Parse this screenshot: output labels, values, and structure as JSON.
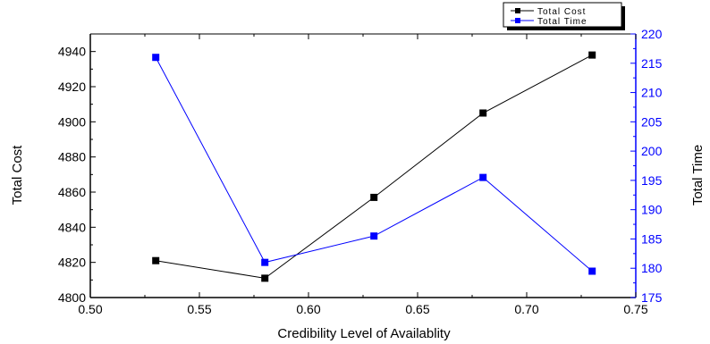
{
  "chart_data": {
    "type": "line",
    "xlabel": "Credibility Level of Availablity",
    "ylabel_left": "Total Cost",
    "ylabel_right": "Total Time",
    "xlim": [
      0.5,
      0.75
    ],
    "x_ticks": [
      "0.50",
      "0.55",
      "0.60",
      "0.65",
      "0.70",
      "0.75"
    ],
    "ylim_left": [
      4800,
      4950
    ],
    "y_ticks_left": [
      "4800",
      "4820",
      "4840",
      "4860",
      "4880",
      "4900",
      "4920",
      "4940"
    ],
    "ylim_right": [
      175,
      220
    ],
    "y_ticks_right": [
      "175",
      "180",
      "185",
      "190",
      "195",
      "200",
      "205",
      "210",
      "215",
      "220"
    ],
    "legend_position": "top-right",
    "grid": false,
    "series": [
      {
        "name": "Total Cost",
        "axis": "left",
        "color": "#000000",
        "x": [
          0.53,
          0.58,
          0.63,
          0.68,
          0.73
        ],
        "y": [
          4821,
          4811,
          4857,
          4905,
          4938
        ]
      },
      {
        "name": "Total Time",
        "axis": "right",
        "color": "#0000ff",
        "x": [
          0.53,
          0.58,
          0.63,
          0.68,
          0.73
        ],
        "y": [
          216,
          181,
          185.5,
          195.5,
          179.5
        ]
      }
    ]
  }
}
